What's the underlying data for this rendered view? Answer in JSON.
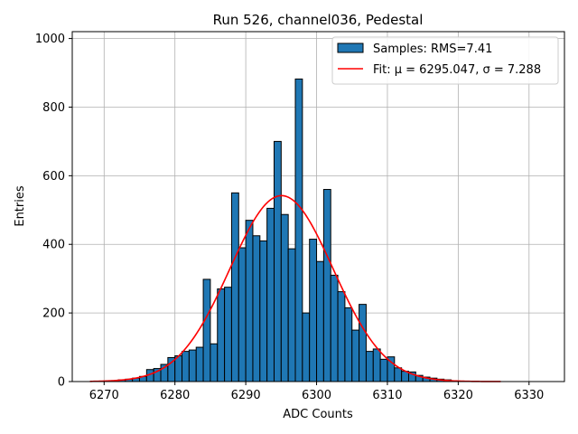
{
  "chart_data": {
    "type": "histogram",
    "title": "Run 526, channel036, Pedestal",
    "xlabel": "ADC Counts",
    "ylabel": "Entries",
    "xlim": [
      6265.5,
      6335
    ],
    "ylim": [
      0,
      1020
    ],
    "xticks": [
      6270,
      6280,
      6290,
      6300,
      6310,
      6320,
      6330
    ],
    "yticks": [
      0,
      200,
      400,
      600,
      800,
      1000
    ],
    "grid": true,
    "legend_position": "top-right",
    "bar_color": "#1f77b4",
    "fit_color": "#ff0000",
    "bin_start": 6272,
    "bin_width": 1,
    "counts": [
      5,
      7,
      10,
      15,
      35,
      38,
      50,
      70,
      75,
      88,
      92,
      100,
      298,
      110,
      270,
      275,
      550,
      390,
      470,
      425,
      410,
      505,
      700,
      487,
      387,
      882,
      200,
      415,
      350,
      560,
      310,
      262,
      215,
      150,
      225,
      88,
      95,
      65,
      72,
      40,
      30,
      28,
      18,
      13,
      10,
      7,
      5
    ],
    "series": [
      {
        "name": "Samples: RMS=7.41",
        "kind": "histogram"
      },
      {
        "name": "Fit: μ = 6295.047, σ = 7.288",
        "kind": "gaussian-fit",
        "mu": 6295.047,
        "sigma": 7.288,
        "amplitude": 542,
        "x_range": [
          6268,
          6326
        ]
      }
    ]
  }
}
